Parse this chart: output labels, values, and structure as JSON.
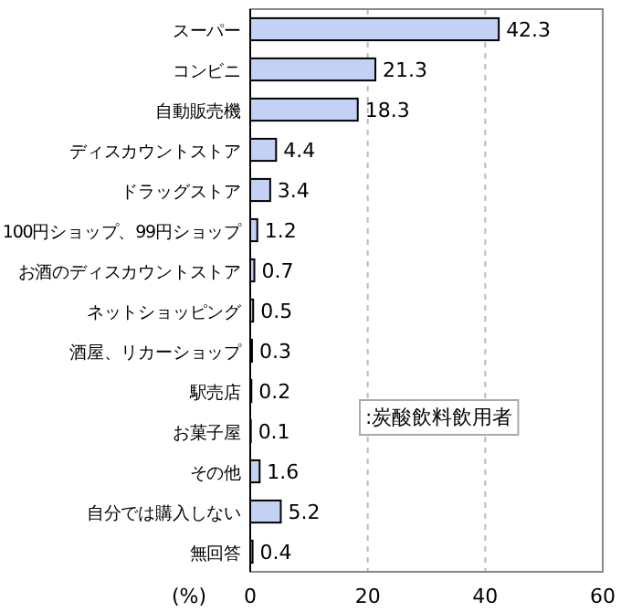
{
  "chart_data": {
    "type": "bar",
    "orientation": "horizontal",
    "categories": [
      "スーパー",
      "コンビニ",
      "自動販売機",
      "ディスカウントストア",
      "ドラッグストア",
      "100円ショップ、99円ショップ",
      "お酒のディスカウントストア",
      "ネットショッピング",
      "酒屋、リカーショップ",
      "駅売店",
      "お菓子屋",
      "その他",
      "自分では購入しない",
      "無回答"
    ],
    "values": [
      42.3,
      21.3,
      18.3,
      4.4,
      3.4,
      1.2,
      0.7,
      0.5,
      0.3,
      0.2,
      0.1,
      1.6,
      5.2,
      0.4
    ],
    "color": "#c3d1f5",
    "data_labels": true,
    "xlim": [
      0,
      60
    ],
    "xticks": [
      0,
      20,
      40,
      60
    ],
    "xlabel": "(%)",
    "grid": "x",
    "annotations": [
      ":炭酸飲料飲用者"
    ]
  }
}
